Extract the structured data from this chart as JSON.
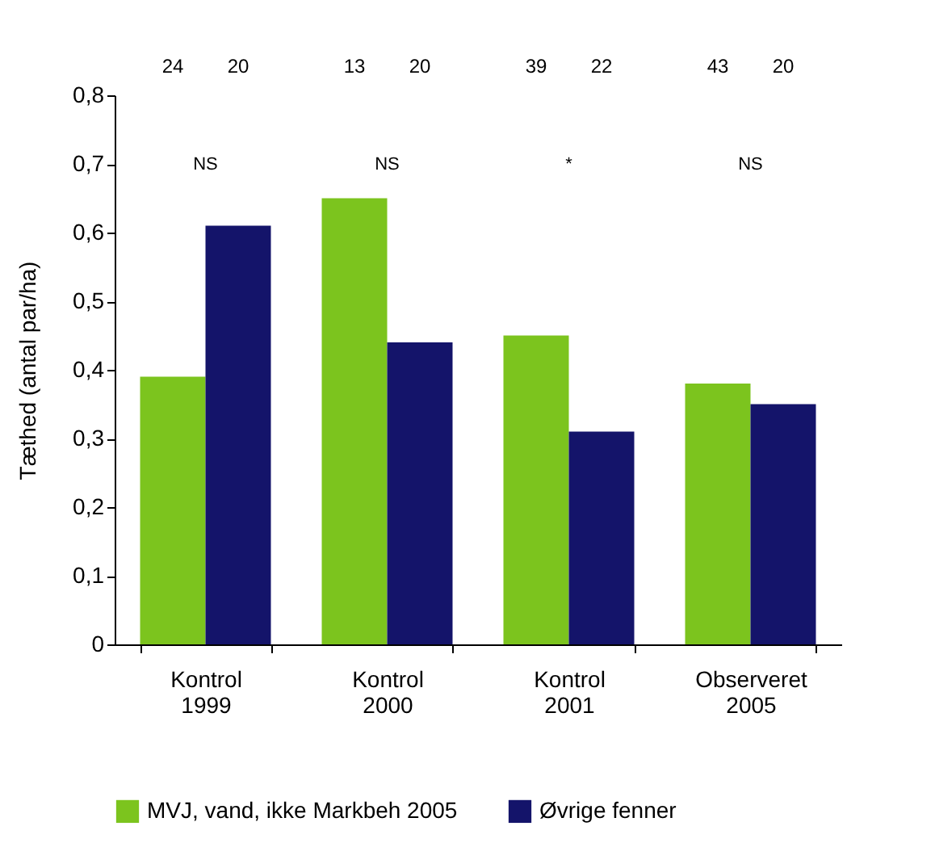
{
  "chart_data": {
    "type": "bar",
    "ylabel": "Tæthed (antal par/ha)",
    "categories": [
      "Kontrol\n1999",
      "Kontrol\n2000",
      "Kontrol\n2001",
      "Observeret\n2005"
    ],
    "series": [
      {
        "name": "MVJ, vand, ikke Markbeh 2005",
        "color": "#7cc41e",
        "values": [
          0.39,
          0.65,
          0.45,
          0.38
        ]
      },
      {
        "name": "Øvrige fenner",
        "color": "#14146a",
        "values": [
          0.61,
          0.44,
          0.31,
          0.35
        ]
      }
    ],
    "ylim": [
      0,
      0.8
    ],
    "yticks": [
      {
        "value": 0,
        "label": "0"
      },
      {
        "value": 0.1,
        "label": "0,1"
      },
      {
        "value": 0.2,
        "label": "0,2"
      },
      {
        "value": 0.3,
        "label": "0,3"
      },
      {
        "value": 0.4,
        "label": "0,4"
      },
      {
        "value": 0.5,
        "label": "0,5"
      },
      {
        "value": 0.6,
        "label": "0,6"
      },
      {
        "value": 0.7,
        "label": "0,7"
      },
      {
        "value": 0.8,
        "label": "0,8"
      }
    ],
    "annotations": [
      "24",
      "20",
      "13",
      "20",
      "39",
      "22",
      "43",
      "20",
      "NS",
      "NS",
      "*",
      "NS"
    ],
    "grid": false,
    "legend": "bottom"
  }
}
